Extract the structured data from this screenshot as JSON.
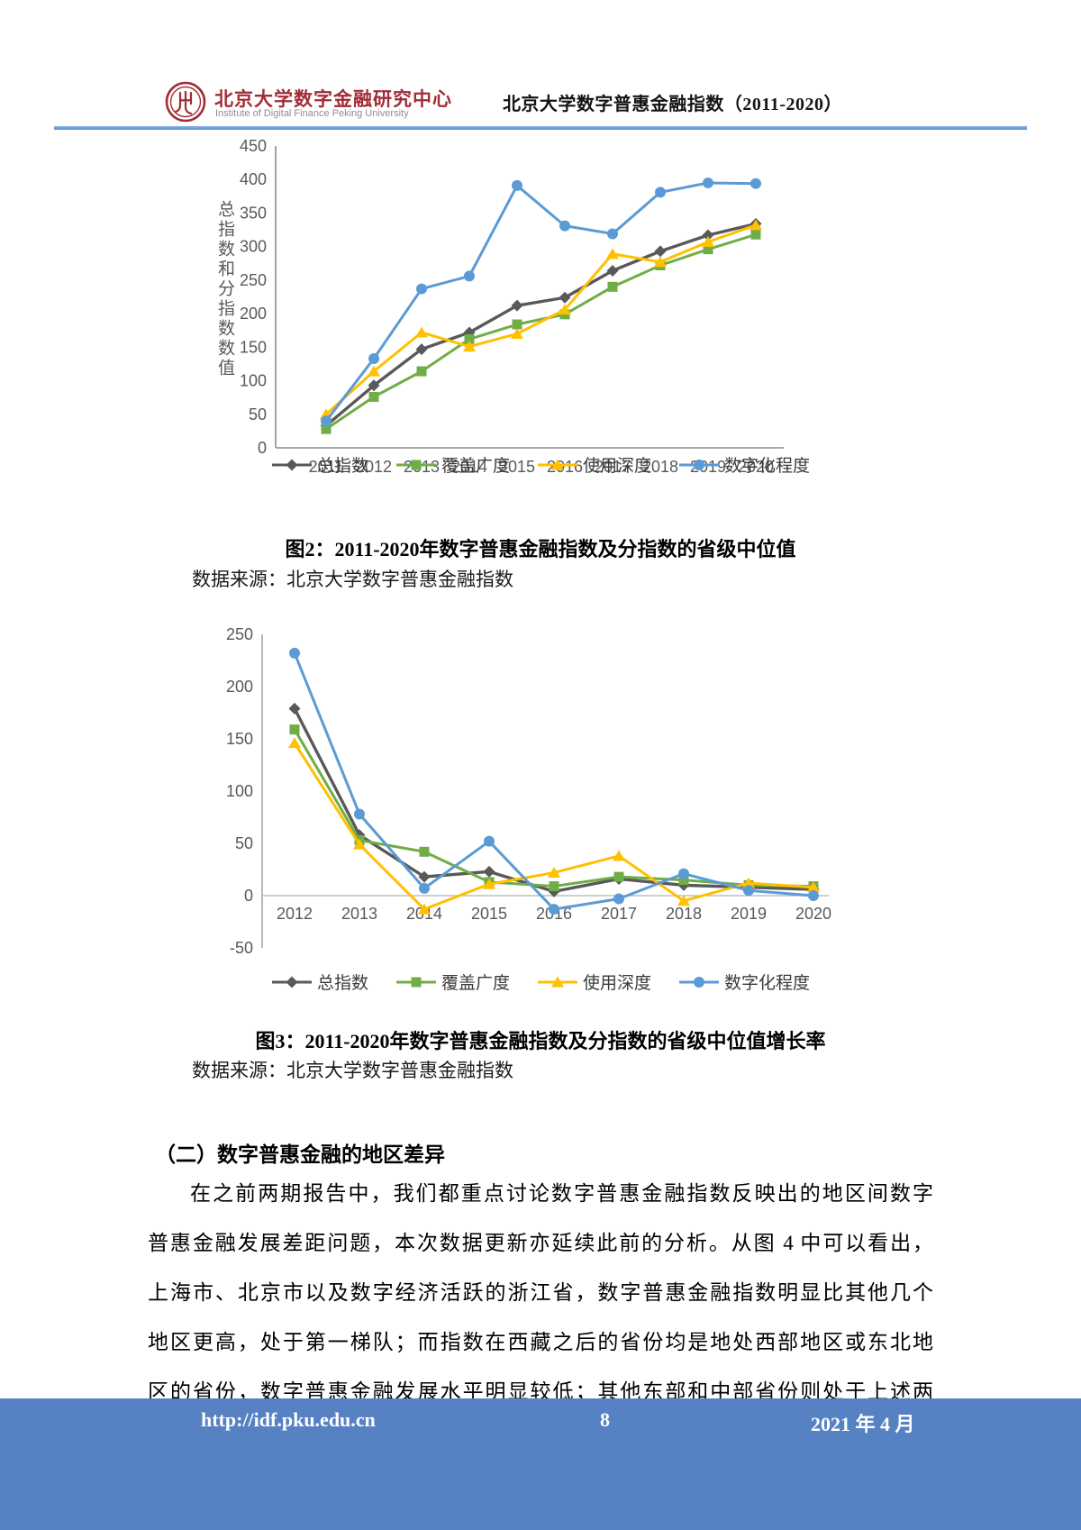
{
  "header": {
    "org_cn": "北京大学数字金融研究中心",
    "org_en": "Institute of Digital Finance Peking University",
    "report_title": "北京大学数字普惠金融指数（2011-2020）"
  },
  "figure2": {
    "caption": "图2：2011-2020年数字普惠金融指数及分指数的省级中位值",
    "source": "数据来源：北京大学数字普惠金融指数",
    "y_axis_title": "总指数和分指数数值"
  },
  "figure3": {
    "caption": "图3：2011-2020年数字普惠金融指数及分指数的省级中位值增长率",
    "source": "数据来源：北京大学数字普惠金融指数"
  },
  "section": {
    "heading": "（二）数字普惠金融的地区差异"
  },
  "paragraph": {
    "lines": [
      "在之前两期报告中，我们都重点讨论数字普惠金融指数反映出的地区间数字",
      "普惠金融发展差距问题，本次数据更新亦延续此前的分析。从图 4 中可以看出，",
      "上海市、北京市以及数字经济活跃的浙江省，数字普惠金融指数明显比其他几个",
      "地区更高，处于第一梯队；而指数在西藏之后的省份均是地处西部地区或东北地",
      "区的省份，数字普惠金融发展水平明显较低；其他东部和中部省份则处于上述两"
    ]
  },
  "footer": {
    "url": "http://idf.pku.edu.cn",
    "page": "8",
    "date": "2021 年 4 月"
  },
  "colors": {
    "series_total": "#595959",
    "series_coverage": "#70AD47",
    "series_usage": "#FFC000",
    "series_digitization": "#5B9BD5",
    "footer_blue": "#5681C3",
    "rule_blue": "#5B9BD5",
    "logo_red": "#A12C35"
  },
  "chart_data": [
    {
      "type": "line",
      "title": "图2：2011-2020年数字普惠金融指数及分指数的省级中位值",
      "xlabel": "",
      "ylabel": "总指数和分指数数值",
      "categories": [
        "2011",
        "2012",
        "2013",
        "2014",
        "2015",
        "2016",
        "2017",
        "2018",
        "2019",
        "2020"
      ],
      "ylim": [
        0,
        450
      ],
      "ytick_step": 50,
      "grid": false,
      "legend_position": "bottom",
      "series": [
        {
          "name": "总指数",
          "color": "#595959",
          "marker": "diamond",
          "values": [
            33,
            93,
            147,
            172,
            212,
            224,
            264,
            293,
            317,
            334
          ]
        },
        {
          "name": "覆盖广度",
          "color": "#70AD47",
          "marker": "square",
          "values": [
            28,
            76,
            114,
            162,
            184,
            199,
            240,
            272,
            296,
            318
          ]
        },
        {
          "name": "使用深度",
          "color": "#FFC000",
          "marker": "triangle",
          "values": [
            50,
            114,
            172,
            151,
            170,
            206,
            289,
            277,
            307,
            332
          ]
        },
        {
          "name": "数字化程度",
          "color": "#5B9BD5",
          "marker": "circle",
          "values": [
            40,
            133,
            237,
            256,
            391,
            331,
            319,
            381,
            395,
            394
          ]
        }
      ]
    },
    {
      "type": "line",
      "title": "图3：2011-2020年数字普惠金融指数及分指数的省级中位值增长率",
      "xlabel": "",
      "ylabel": "",
      "categories": [
        "2012",
        "2013",
        "2014",
        "2015",
        "2016",
        "2017",
        "2018",
        "2019",
        "2020"
      ],
      "ylim": [
        -50,
        250
      ],
      "ytick_step": 50,
      "grid": false,
      "legend_position": "bottom",
      "series": [
        {
          "name": "总指数",
          "color": "#595959",
          "marker": "diamond",
          "values": [
            179,
            58,
            18,
            23,
            4,
            16,
            10,
            8,
            6
          ]
        },
        {
          "name": "覆盖广度",
          "color": "#70AD47",
          "marker": "square",
          "values": [
            159,
            53,
            42,
            13,
            9,
            18,
            15,
            10,
            9
          ]
        },
        {
          "name": "使用深度",
          "color": "#FFC000",
          "marker": "triangle",
          "values": [
            146,
            49,
            -13,
            11,
            22,
            38,
            -5,
            12,
            8
          ]
        },
        {
          "name": "数字化程度",
          "color": "#5B9BD5",
          "marker": "circle",
          "values": [
            232,
            78,
            7,
            52,
            -13,
            -3,
            21,
            5,
            0
          ]
        }
      ]
    }
  ]
}
